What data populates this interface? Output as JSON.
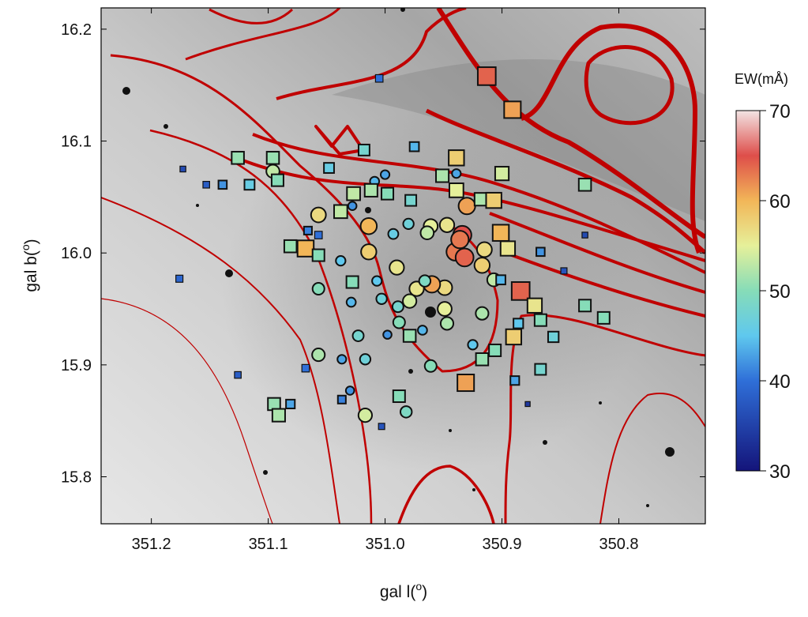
{
  "chart_data": {
    "type": "scatter",
    "xlabel": [
      "gal l(",
      "o",
      ")"
    ],
    "ylabel": [
      "gal b(",
      "o",
      ")"
    ],
    "xlim": [
      351.243,
      350.726
    ],
    "ylim": [
      15.758,
      16.219
    ],
    "xticks": [
      351.2,
      351.1,
      {
        "value": 351.0,
        "label": "351.0"
      },
      350.9,
      350.8
    ],
    "yticks": [
      15.8,
      15.9,
      {
        "value": 16.0,
        "label": "16.0"
      },
      16.1,
      16.2
    ],
    "colorbar": {
      "title": "EW(mÅ)",
      "lim": [
        30,
        70
      ],
      "ticks": [
        30,
        40,
        50,
        60,
        70
      ],
      "colormap": {
        "values": [
          30,
          40,
          45,
          50,
          55,
          60,
          65,
          70
        ],
        "colors": [
          "#14147a",
          "#2f6fd8",
          "#5fc8ee",
          "#86dcb8",
          "#e6f09a",
          "#f2b658",
          "#de4e4a",
          "#f2e4e4"
        ]
      }
    },
    "series": [
      {
        "marker": "circle",
        "x": [
          351.096,
          351.057,
          351.014,
          351.014,
          351.038,
          351.057,
          351.057,
          351.017,
          350.982,
          351.017,
          351.023,
          350.99,
          350.961,
          350.947,
          350.93,
          350.934,
          350.94,
          350.932,
          350.917,
          350.907,
          350.949,
          350.949,
          350.96,
          350.973,
          350.979,
          350.989,
          350.988,
          350.966,
          351.007,
          351.003,
          351.029,
          350.993,
          350.98,
          350.925,
          350.961,
          351.0,
          351.009,
          351.028,
          350.939,
          351.03,
          351.037,
          350.998,
          350.917,
          350.968,
          350.936,
          350.915,
          350.964,
          350.947
        ],
        "values": [
          16.073,
          16.034,
          16.024,
          16.001,
          15.993,
          15.968,
          15.909,
          15.855,
          15.858,
          15.905,
          15.926,
          15.987,
          16.024,
          16.025,
          16.042,
          16.016,
          16.001,
          15.996,
          15.989,
          15.976,
          15.969,
          15.95,
          15.972,
          15.968,
          15.957,
          15.952,
          15.938,
          15.975,
          15.975,
          15.959,
          15.956,
          16.017,
          16.026,
          15.918,
          15.899,
          16.07,
          16.064,
          16.042,
          16.071,
          15.877,
          15.905,
          15.927,
          15.946,
          15.931,
          16.012,
          16.003,
          16.018,
          15.937
        ],
        "color_values": [
          53,
          57,
          60,
          58,
          45,
          50,
          52,
          54,
          49,
          47,
          48,
          56,
          55,
          56,
          61,
          65,
          63,
          64,
          58,
          53,
          57,
          55,
          61,
          56,
          54,
          48,
          50,
          49,
          45,
          47,
          44,
          46,
          47,
          45,
          50,
          43,
          44,
          42,
          43,
          42,
          43,
          42,
          52,
          44,
          63,
          57,
          53,
          52
        ]
      },
      {
        "marker": "square",
        "x": [
          350.913,
          350.891,
          351.126,
          351.096,
          351.092,
          351.116,
          351.139,
          351.048,
          351.018,
          351.027,
          351.038,
          351.012,
          350.998,
          350.975,
          350.978,
          350.951,
          350.939,
          350.939,
          350.918,
          350.907,
          350.9,
          350.901,
          350.895,
          351.068,
          351.081,
          351.057,
          351.066,
          351.057,
          350.884,
          350.872,
          350.867,
          350.89,
          350.886,
          350.867,
          350.889,
          350.856,
          350.829,
          350.813,
          350.829,
          350.931,
          350.917,
          350.906,
          350.988,
          351.095,
          351.091,
          351.081,
          351.028,
          350.979,
          351.153,
          351.173,
          351.176,
          351.126,
          351.068,
          351.003,
          351.037,
          350.878,
          350.847,
          350.829,
          350.867,
          350.901,
          351.005
        ],
        "values": [
          16.158,
          16.128,
          16.085,
          16.085,
          16.065,
          16.061,
          16.061,
          16.076,
          16.092,
          16.053,
          16.037,
          16.056,
          16.053,
          16.095,
          16.047,
          16.069,
          16.085,
          16.056,
          16.048,
          16.047,
          16.071,
          16.018,
          16.004,
          16.004,
          16.006,
          15.998,
          16.02,
          16.016,
          15.966,
          15.953,
          15.94,
          15.925,
          15.937,
          15.896,
          15.886,
          15.925,
          15.953,
          15.942,
          16.061,
          15.884,
          15.905,
          15.913,
          15.872,
          15.865,
          15.855,
          15.865,
          15.974,
          15.926,
          16.061,
          16.075,
          15.977,
          15.891,
          15.897,
          15.845,
          15.869,
          15.865,
          15.984,
          16.016,
          16.001,
          15.976,
          16.156
        ],
        "color_values": [
          64,
          61,
          51,
          51,
          50,
          46,
          42,
          46,
          48,
          53,
          53,
          52,
          50,
          44,
          48,
          52,
          58,
          55,
          52,
          58,
          54,
          60,
          56,
          60,
          51,
          50,
          41,
          40,
          64,
          56,
          50,
          58,
          45,
          48,
          43,
          47,
          50,
          50,
          51,
          61,
          51,
          50,
          50,
          51,
          52,
          43,
          50,
          51,
          38,
          36,
          39,
          38,
          40,
          37,
          41,
          34,
          37,
          36,
          42,
          44,
          40
        ]
      }
    ]
  }
}
